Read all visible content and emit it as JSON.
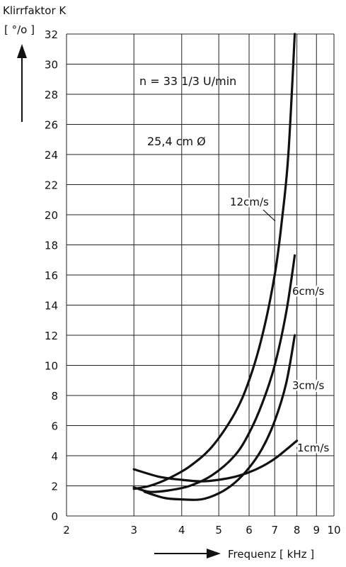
{
  "chart_data": {
    "type": "line",
    "title": "",
    "ylabel_line1": "Klirrfaktor K",
    "ylabel_line2": "[ °/o ]",
    "xlabel": "Frequenz [ kHz ]",
    "x_scale": "log",
    "xlim": [
      2,
      10
    ],
    "ylim": [
      0,
      32
    ],
    "grid": true,
    "x_ticks": [
      2,
      3,
      4,
      5,
      6,
      7,
      8,
      9,
      10
    ],
    "x_tick_labels": [
      "2",
      "3",
      "4",
      "5",
      "6",
      "7",
      "8",
      "9",
      "10"
    ],
    "y_ticks": [
      0,
      2,
      4,
      6,
      8,
      10,
      12,
      14,
      16,
      18,
      20,
      22,
      24,
      26,
      28,
      30,
      32
    ],
    "y_tick_labels": [
      "0",
      "2",
      "4",
      "6",
      "8",
      "10",
      "12",
      "14",
      "16",
      "18",
      "20",
      "22",
      "24",
      "26",
      "28",
      "30",
      "32"
    ],
    "annotations": {
      "speed": "n = 33 1/3 U/min",
      "diameter": "25,4 cm Ø"
    },
    "series": [
      {
        "name": "12cm/s",
        "x": [
          3.0,
          3.3,
          3.7,
          4.2,
          4.8,
          5.5,
          6.0,
          6.5,
          7.0,
          7.3,
          7.6,
          7.9
        ],
        "y": [
          1.8,
          2.0,
          2.5,
          3.3,
          4.6,
          6.8,
          9.0,
          12.0,
          16.0,
          19.5,
          24.0,
          32.0
        ]
      },
      {
        "name": "6cm/s",
        "x": [
          3.0,
          3.3,
          3.7,
          4.2,
          4.8,
          5.5,
          6.0,
          6.5,
          7.0,
          7.5,
          7.9
        ],
        "y": [
          1.9,
          1.6,
          1.7,
          2.0,
          2.7,
          4.0,
          5.5,
          7.5,
          10.0,
          13.5,
          17.3
        ]
      },
      {
        "name": "3cm/s",
        "x": [
          3.2,
          3.6,
          4.0,
          4.5,
          5.0,
          5.5,
          6.0,
          6.5,
          7.0,
          7.5,
          7.9
        ],
        "y": [
          1.6,
          1.2,
          1.1,
          1.1,
          1.5,
          2.2,
          3.2,
          4.5,
          6.3,
          8.8,
          12.0
        ]
      },
      {
        "name": "1cm/s",
        "x": [
          3.0,
          3.5,
          4.0,
          4.5,
          5.0,
          5.5,
          6.0,
          6.5,
          7.0,
          7.5,
          8.0
        ],
        "y": [
          3.1,
          2.6,
          2.4,
          2.3,
          2.4,
          2.6,
          2.9,
          3.3,
          3.8,
          4.4,
          5.0
        ]
      }
    ],
    "series_labels": [
      "12cm/s",
      "6cm/s",
      "3cm/s",
      "1cm/s"
    ]
  }
}
